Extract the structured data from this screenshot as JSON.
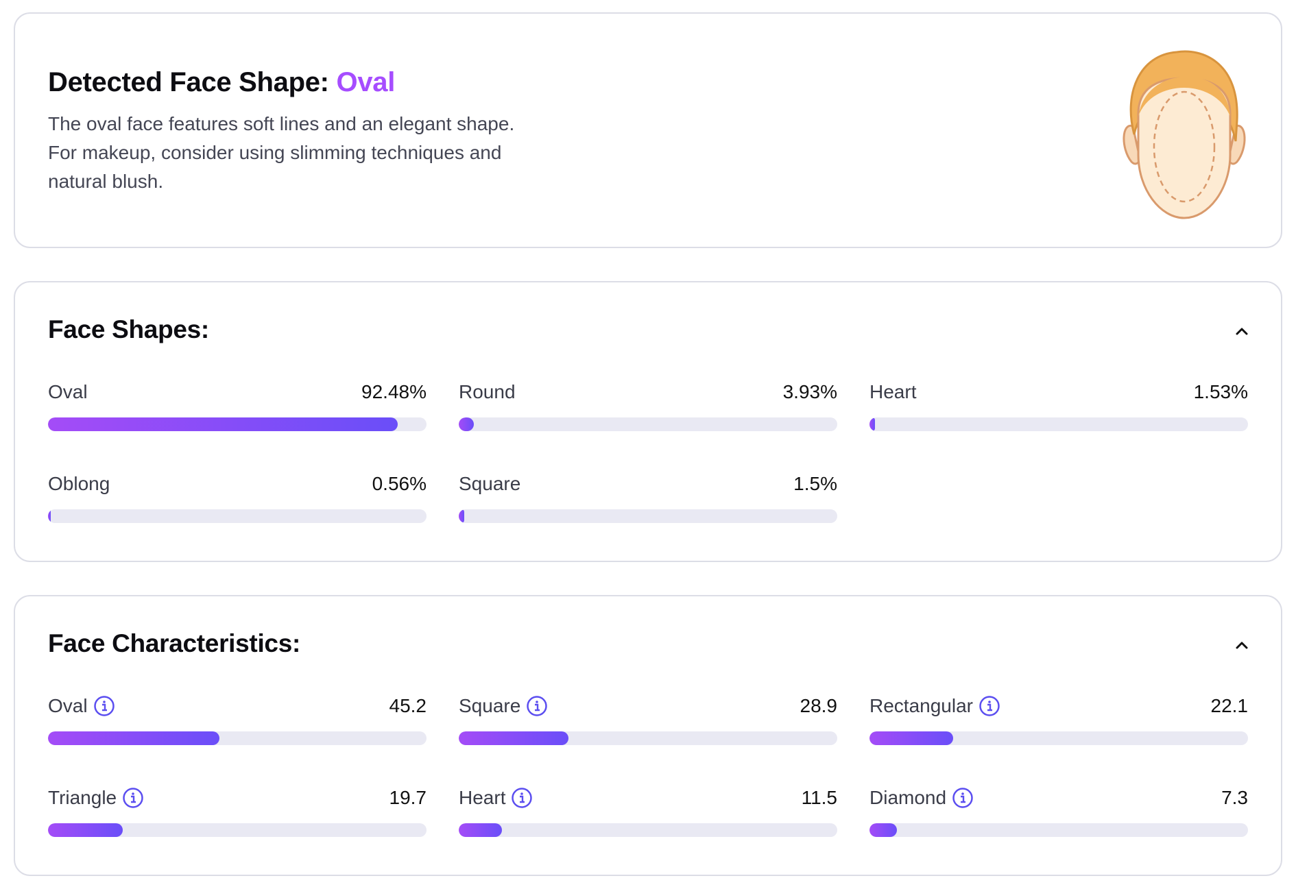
{
  "detected": {
    "title_prefix": "Detected Face Shape:",
    "shape": "Oval",
    "description": "The oval face features soft lines and an elegant shape. For makeup, consider using slimming techniques and natural blush."
  },
  "face_shapes": {
    "title": "Face Shapes:",
    "items": [
      {
        "label": "Oval",
        "value": "92.48%",
        "fraction": 0.9248
      },
      {
        "label": "Round",
        "value": "3.93%",
        "fraction": 0.0393
      },
      {
        "label": "Heart",
        "value": "1.53%",
        "fraction": 0.0153
      },
      {
        "label": "Oblong",
        "value": "0.56%",
        "fraction": 0.0056
      },
      {
        "label": "Square",
        "value": "1.5%",
        "fraction": 0.015
      }
    ]
  },
  "face_characteristics": {
    "title": "Face Characteristics:",
    "items": [
      {
        "label": "Oval",
        "value": "45.2",
        "fraction": 0.452
      },
      {
        "label": "Square",
        "value": "28.9",
        "fraction": 0.289
      },
      {
        "label": "Rectangular",
        "value": "22.1",
        "fraction": 0.221
      },
      {
        "label": "Triangle",
        "value": "19.7",
        "fraction": 0.197
      },
      {
        "label": "Heart",
        "value": "11.5",
        "fraction": 0.115
      },
      {
        "label": "Diamond",
        "value": "7.3",
        "fraction": 0.073
      }
    ]
  },
  "colors": {
    "accent": "#a64dff",
    "bar_start": "#a44cf7",
    "bar_end": "#6a4ef8",
    "track": "#e9e9f3",
    "info_icon": "#5b4ef0"
  },
  "icons": {
    "collapse": "chevron-up-icon",
    "info": "info-icon",
    "illustration": "face-illustration-icon"
  }
}
